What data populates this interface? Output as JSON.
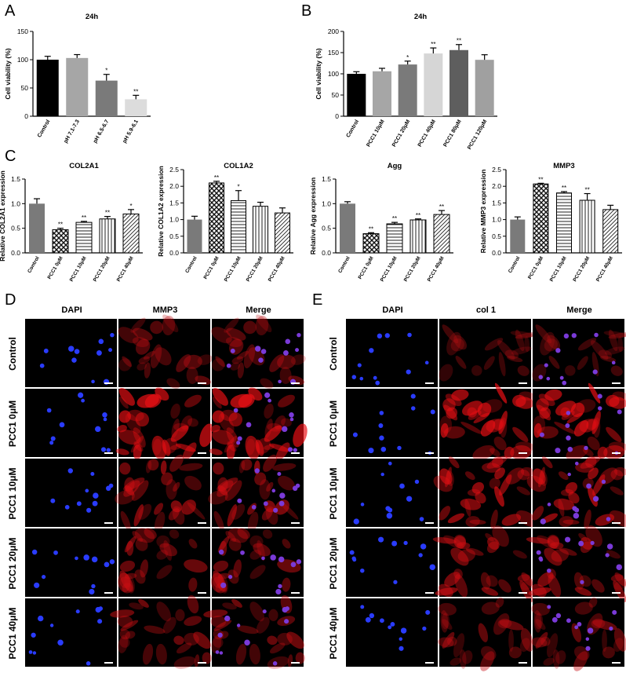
{
  "panels": {
    "A": "A",
    "B": "B",
    "C": "C",
    "D": "D",
    "E": "E"
  },
  "chart_data": [
    {
      "id": "A",
      "type": "bar",
      "title": "24h",
      "ylabel": "Cell viability (%)",
      "ylim": [
        0,
        150
      ],
      "yticks": [
        0,
        50,
        100,
        150
      ],
      "categories": [
        "Control",
        "pH 7.1-7.3",
        "pH 6.5-6.7",
        "pH 5.9-6.1"
      ],
      "values": [
        100,
        103,
        63,
        30
      ],
      "errors": [
        6,
        6,
        11,
        7
      ],
      "sig": [
        "",
        "",
        "*",
        "**"
      ],
      "colors": [
        "#000000",
        "#a6a6a6",
        "#7a7a7a",
        "#dcdcdc"
      ],
      "patterns": [
        "solid",
        "solid",
        "solid",
        "solid"
      ]
    },
    {
      "id": "B",
      "type": "bar",
      "title": "24h",
      "ylabel": "Cell viability (%)",
      "ylim": [
        0,
        200
      ],
      "yticks": [
        0,
        50,
        100,
        150,
        200
      ],
      "categories": [
        "Control",
        "PCC1 10μM",
        "PCC1 20μM",
        "PCC1 40μM",
        "PCC1 80μM",
        "PCC1 120μM"
      ],
      "values": [
        100,
        106,
        122,
        148,
        156,
        133
      ],
      "errors": [
        5,
        7,
        8,
        13,
        13,
        12
      ],
      "sig": [
        "",
        "",
        "*",
        "**",
        "**",
        ""
      ],
      "colors": [
        "#000000",
        "#a6a6a6",
        "#7a7a7a",
        "#d6d6d6",
        "#5e5e5e",
        "#a0a0a0"
      ],
      "patterns": [
        "solid",
        "solid",
        "solid",
        "solid",
        "solid",
        "solid"
      ]
    },
    {
      "id": "C1",
      "type": "bar",
      "title": "COL2A1",
      "ylabel": "Relative COL2A1 expression",
      "ylim": [
        0,
        1.5
      ],
      "yticks": [
        0.0,
        0.5,
        1.0,
        1.5
      ],
      "categories": [
        "Control",
        "PCC1 0μM",
        "PCC1 10μM",
        "PCC1 20μM",
        "PCC1 40μM"
      ],
      "values": [
        1.0,
        0.47,
        0.62,
        0.69,
        0.79
      ],
      "errors": [
        0.1,
        0.03,
        0.02,
        0.05,
        0.09
      ],
      "sig": [
        "",
        "**",
        "**",
        "**",
        "*"
      ],
      "colors": [
        "#7a7a7a",
        "#ffffff",
        "#ffffff",
        "#ffffff",
        "#ffffff"
      ],
      "patterns": [
        "solid",
        "check",
        "hline",
        "vline",
        "diag"
      ]
    },
    {
      "id": "C2",
      "type": "bar",
      "title": "COL1A2",
      "ylabel": "Relative COL1A2 expression",
      "ylim": [
        0,
        2.5
      ],
      "yticks": [
        0.0,
        0.5,
        1.0,
        1.5,
        2.0,
        2.5
      ],
      "categories": [
        "Control",
        "PCC1 0μM",
        "PCC1 10μM",
        "PCC1 20μM",
        "PCC1 40μM"
      ],
      "values": [
        1.0,
        2.1,
        1.57,
        1.4,
        1.2
      ],
      "errors": [
        0.1,
        0.05,
        0.3,
        0.12,
        0.15
      ],
      "sig": [
        "",
        "**",
        "*",
        "",
        ""
      ],
      "colors": [
        "#7a7a7a",
        "#ffffff",
        "#ffffff",
        "#ffffff",
        "#ffffff"
      ],
      "patterns": [
        "solid",
        "check",
        "hline",
        "vline",
        "diag"
      ]
    },
    {
      "id": "C3",
      "type": "bar",
      "title": "Agg",
      "ylabel": "Relative Agg expression",
      "ylim": [
        0,
        1.5
      ],
      "yticks": [
        0.0,
        0.5,
        1.0,
        1.5
      ],
      "categories": [
        "Control",
        "PCC1 0μM",
        "PCC1 10μM",
        "PCC1 20μM",
        "PCC1 40μM"
      ],
      "values": [
        1.0,
        0.39,
        0.59,
        0.67,
        0.78
      ],
      "errors": [
        0.04,
        0.02,
        0.03,
        0.02,
        0.08
      ],
      "sig": [
        "",
        "**",
        "**",
        "**",
        "**"
      ],
      "colors": [
        "#7a7a7a",
        "#ffffff",
        "#ffffff",
        "#ffffff",
        "#ffffff"
      ],
      "patterns": [
        "solid",
        "check",
        "hline",
        "vline",
        "diag"
      ]
    },
    {
      "id": "C4",
      "type": "bar",
      "title": "MMP3",
      "ylabel": "Relative MMP3 expression",
      "ylim": [
        0,
        2.5
      ],
      "yticks": [
        0.0,
        0.5,
        1.0,
        1.5,
        2.0,
        2.5
      ],
      "categories": [
        "Control",
        "PCC1 0μM",
        "PCC1 10μM",
        "PCC1 20μM",
        "PCC1 40μM"
      ],
      "values": [
        1.0,
        2.07,
        1.8,
        1.58,
        1.3
      ],
      "errors": [
        0.08,
        0.02,
        0.04,
        0.2,
        0.13
      ],
      "sig": [
        "",
        "**",
        "**",
        "**",
        ""
      ],
      "colors": [
        "#7a7a7a",
        "#ffffff",
        "#ffffff",
        "#ffffff",
        "#ffffff"
      ],
      "patterns": [
        "solid",
        "check",
        "hline",
        "vline",
        "diag"
      ]
    }
  ],
  "micrographs": [
    {
      "id": "D",
      "columns": [
        "DAPI",
        "MMP3",
        "Merge"
      ],
      "rows": [
        "Control",
        "PCC1 0μM",
        "PCC1 10μM",
        "PCC1 20μM",
        "PCC1 40μM"
      ],
      "red_intensity": [
        0.45,
        0.95,
        0.7,
        0.6,
        0.6
      ]
    },
    {
      "id": "E",
      "columns": [
        "DAPI",
        "col 1",
        "Merge"
      ],
      "rows": [
        "Control",
        "PCC1 0μM",
        "PCC1 10μM",
        "PCC1 20μM",
        "PCC1 40μM"
      ],
      "red_intensity": [
        0.3,
        0.95,
        0.85,
        0.7,
        0.55
      ]
    }
  ]
}
